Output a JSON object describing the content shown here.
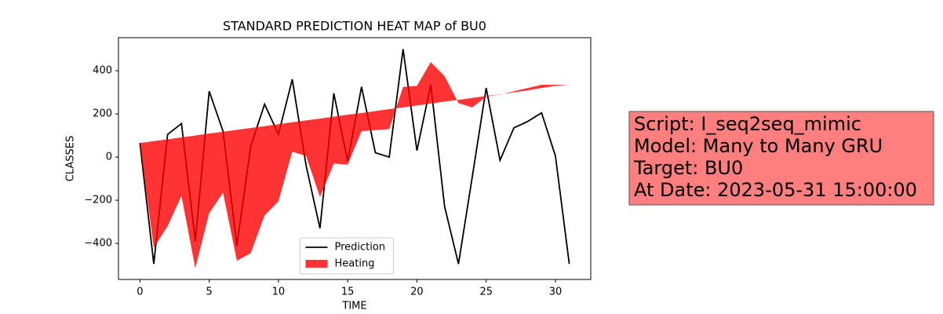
{
  "chart_data": {
    "type": "line",
    "title": "STANDARD PREDICTION HEAT MAP of BU0",
    "x_label": "TIME",
    "y_label": "CLASSES",
    "x": [
      0,
      1,
      2,
      3,
      4,
      5,
      6,
      7,
      8,
      9,
      10,
      11,
      12,
      13,
      14,
      15,
      16,
      17,
      18,
      19,
      20,
      21,
      22,
      23,
      24,
      25,
      26,
      27,
      28,
      29,
      30,
      31
    ],
    "series": [
      {
        "name": "Prediction",
        "color": "#000000",
        "kind": "line",
        "values": [
          65,
          -495,
          105,
          155,
          -390,
          305,
          120,
          -410,
          50,
          245,
          105,
          360,
          -40,
          -330,
          295,
          -20,
          325,
          20,
          0,
          500,
          30,
          335,
          -230,
          -495,
          -90,
          320,
          -15,
          135,
          165,
          205,
          5,
          -495
        ]
      },
      {
        "name": "Heating",
        "color": "#ff0000",
        "alpha": 0.8,
        "kind": "fill",
        "values": [
          65,
          -420,
          -320,
          -180,
          -515,
          -260,
          -165,
          -480,
          -445,
          -270,
          -205,
          25,
          5,
          -185,
          -30,
          -35,
          120,
          125,
          130,
          325,
          330,
          440,
          375,
          250,
          230,
          280,
          290,
          305,
          320,
          335,
          335,
          335
        ],
        "base": [
          65,
          74,
          82,
          91,
          100,
          109,
          117,
          126,
          135,
          143,
          152,
          161,
          170,
          178,
          187,
          196,
          204,
          213,
          222,
          230,
          239,
          248,
          257,
          265,
          274,
          283,
          291,
          300,
          309,
          320,
          330,
          335
        ]
      }
    ],
    "xlim": [
      -1.55,
      32.55
    ],
    "xticks": [
      0,
      5,
      10,
      15,
      20,
      25,
      30
    ],
    "ylim": [
      -567,
      553
    ],
    "yticks": [
      {
        "value": -400,
        "label": "−400"
      },
      {
        "value": -200,
        "label": "−200"
      },
      0,
      200,
      400
    ],
    "legend": "lower center",
    "annotation": {
      "lines": [
        "Script: I_seq2seq_mimic",
        "Model: Many to Many GRU",
        "Target: BU0",
        "At Date: 2023-05-31 15:00:00"
      ],
      "color": "#ff7f7f"
    }
  }
}
